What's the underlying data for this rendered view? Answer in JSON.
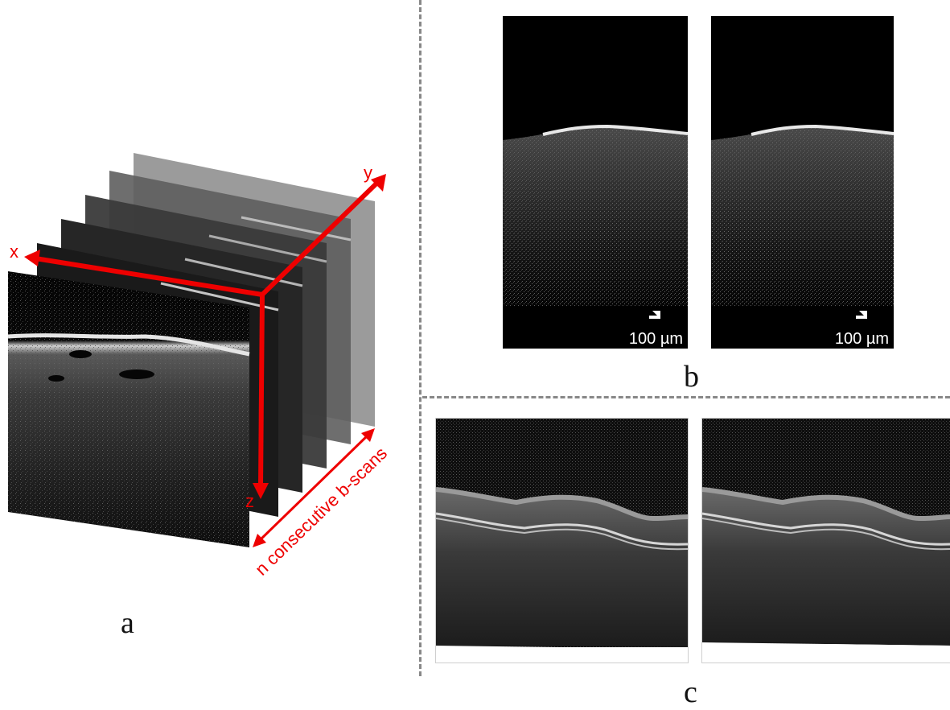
{
  "panels": {
    "a": {
      "label": "a",
      "axes": {
        "x": "x",
        "y": "y",
        "z": "z"
      },
      "stack_label": "n consecutive b-scans"
    },
    "b": {
      "label": "b",
      "scale_left": "100 µm",
      "scale_right": "100 µm"
    },
    "c": {
      "label": "c"
    }
  },
  "colors": {
    "accent": "#ee0000",
    "divider": "#888888",
    "background": "#000000"
  }
}
